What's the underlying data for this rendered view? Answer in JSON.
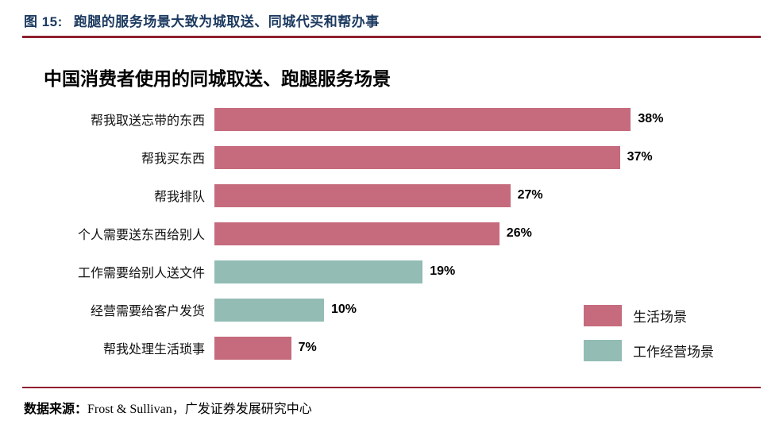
{
  "header": {
    "figure_label": "图 15:",
    "figure_title": "跑腿的服务场景大致为城取送、同城代买和帮办事"
  },
  "chart_data": {
    "type": "bar",
    "orientation": "horizontal",
    "title": "中国消费者使用的同城取送、跑腿服务场景",
    "categories": [
      "帮我取送忘带的东西",
      "帮我买东西",
      "帮我排队",
      "个人需要送东西给别人",
      "工作需要给别人送文件",
      "经营需要给客户发货",
      "帮我处理生活琐事"
    ],
    "values": [
      38,
      37,
      27,
      26,
      19,
      10,
      7
    ],
    "data_labels": [
      "38%",
      "37%",
      "27%",
      "26%",
      "19%",
      "10%",
      "7%"
    ],
    "bar_series": [
      "life",
      "life",
      "life",
      "life",
      "work",
      "work",
      "life"
    ],
    "series_colors": {
      "life": "#c56b7d",
      "work": "#92bcb4"
    },
    "xlim": [
      0,
      40
    ],
    "grid": false,
    "legend_position": "bottom-right",
    "legend": [
      {
        "id": "life",
        "label": "生活场景",
        "color": "#c56b7d"
      },
      {
        "id": "work",
        "label": "工作经营场景",
        "color": "#92bcb4"
      }
    ]
  },
  "footer": {
    "source_prefix": "数据来源：",
    "source_text": "Frost & Sullivan，广发证券发展研究中心"
  },
  "colors": {
    "accent_rule": "#8e1f2f",
    "header_text": "#1c3a60"
  }
}
